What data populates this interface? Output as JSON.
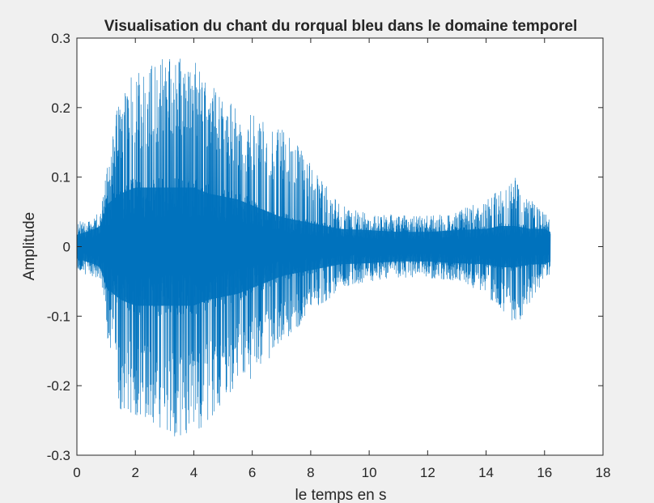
{
  "chart_data": {
    "type": "line",
    "title": "Visualisation du chant du rorqual bleu dans le domaine temporel",
    "xlabel": "le temps en s",
    "ylabel": "Amplitude",
    "xlim": [
      0,
      18
    ],
    "ylim": [
      -0.3,
      0.3
    ],
    "xticks": [
      0,
      2,
      4,
      6,
      8,
      10,
      12,
      14,
      16,
      18
    ],
    "xtick_labels": [
      "0",
      "2",
      "4",
      "6",
      "8",
      "10",
      "12",
      "14",
      "16",
      "18"
    ],
    "yticks": [
      0.3,
      0.2,
      0.1,
      0,
      -0.1,
      -0.2,
      -0.3
    ],
    "ytick_labels": [
      "0.3",
      "0.2",
      "0.1",
      "0",
      "-0.1",
      "-0.2",
      "-0.3"
    ],
    "grid": false,
    "legend": "none",
    "colors": {
      "series": "#0072bd",
      "axes_bg": "#ffffff",
      "figure_bg": "#f0f0f0"
    },
    "series": [
      {
        "signal_duration_s": [
          0,
          16.2
        ],
        "envelope": {
          "t": [
            0,
            0.3,
            0.6,
            0.8,
            1.0,
            1.5,
            2.0,
            2.5,
            3.0,
            3.5,
            4.0,
            4.5,
            5.0,
            5.5,
            6.0,
            6.5,
            7.0,
            7.5,
            8.0,
            8.5,
            9.0,
            10.0,
            11.0,
            12.0,
            13.0,
            14.0,
            14.5,
            15.0,
            15.5,
            16.0,
            16.2
          ],
          "max": [
            0.035,
            0.04,
            0.045,
            0.05,
            0.11,
            0.23,
            0.255,
            0.26,
            0.28,
            0.275,
            0.27,
            0.24,
            0.22,
            0.2,
            0.19,
            0.18,
            0.17,
            0.15,
            0.12,
            0.09,
            0.06,
            0.05,
            0.045,
            0.045,
            0.05,
            0.07,
            0.085,
            0.1,
            0.07,
            0.05,
            0.04
          ],
          "min": [
            -0.035,
            -0.04,
            -0.045,
            -0.05,
            -0.12,
            -0.24,
            -0.25,
            -0.26,
            -0.27,
            -0.285,
            -0.27,
            -0.25,
            -0.23,
            -0.2,
            -0.19,
            -0.17,
            -0.14,
            -0.12,
            -0.09,
            -0.08,
            -0.06,
            -0.05,
            -0.045,
            -0.045,
            -0.05,
            -0.07,
            -0.09,
            -0.12,
            -0.08,
            -0.05,
            -0.04
          ],
          "core": [
            0.02,
            0.025,
            0.03,
            0.035,
            0.07,
            0.09,
            0.1,
            0.1,
            0.1,
            0.1,
            0.1,
            0.09,
            0.085,
            0.08,
            0.07,
            0.06,
            0.05,
            0.045,
            0.04,
            0.035,
            0.03,
            0.028,
            0.025,
            0.025,
            0.028,
            0.03,
            0.035,
            0.035,
            0.03,
            0.03,
            0.025
          ]
        }
      }
    ]
  }
}
